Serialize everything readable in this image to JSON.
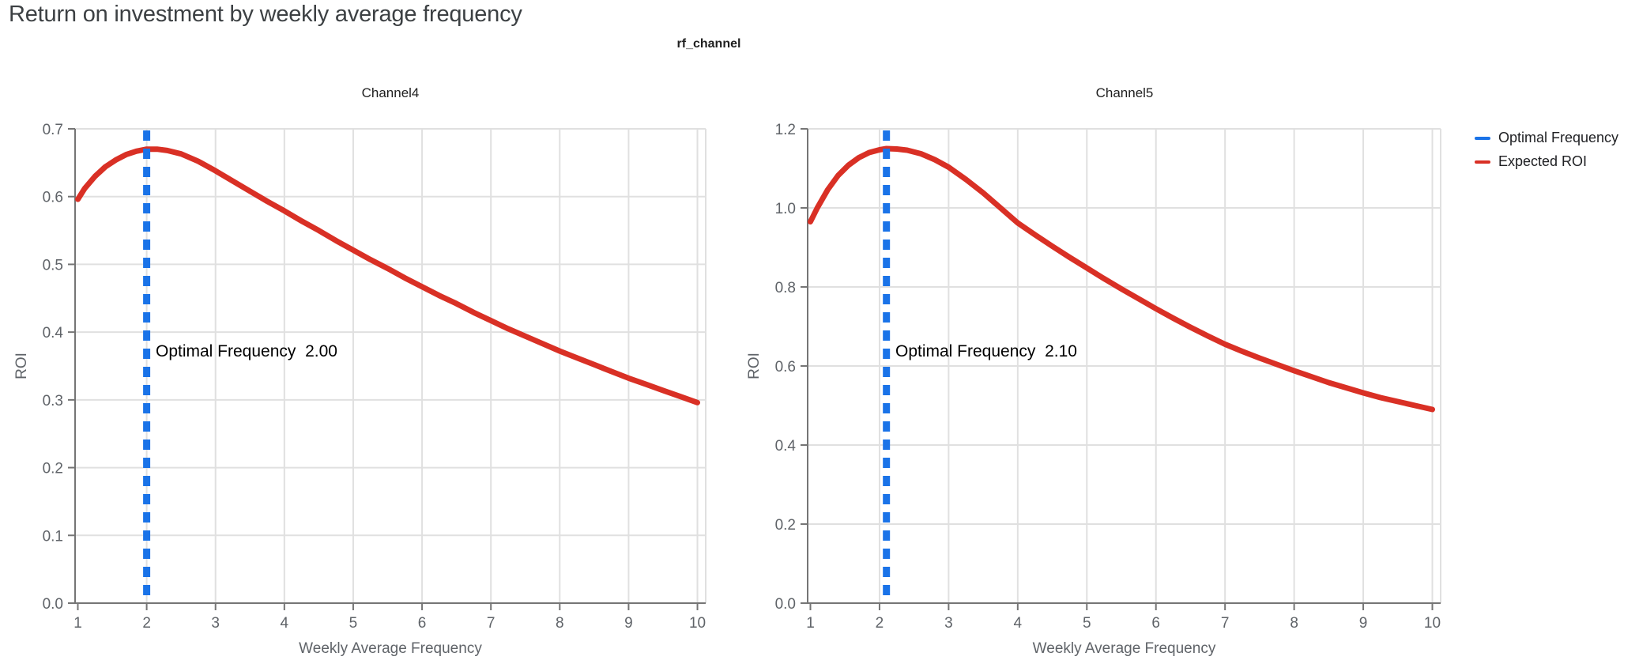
{
  "page": {
    "title": "Return on investment by weekly average frequency"
  },
  "facet": {
    "title": "rf_channel"
  },
  "legend": {
    "items": [
      {
        "label": "Optimal Frequency",
        "color": "#1a73e8"
      },
      {
        "label": "Expected ROI",
        "color": "#d93025"
      }
    ]
  },
  "colors": {
    "optimal_line": "#1a73e8",
    "roi_line": "#d93025",
    "grid": "#e0e0e0",
    "axis": "#757575",
    "tick_text": "#5f6368",
    "title_text": "#3c4043"
  },
  "chart_data": [
    {
      "type": "line",
      "title": "Channel4",
      "xlabel": "Weekly Average Frequency",
      "ylabel": "ROI",
      "xlim": [
        0.96,
        10.12
      ],
      "ylim": [
        0,
        0.7
      ],
      "grid": true,
      "x_tick_values": [
        1,
        2,
        3,
        4,
        5,
        6,
        7,
        8,
        9,
        10
      ],
      "x_tick_labels": [
        "1",
        "2",
        "3",
        "4",
        "5",
        "6",
        "7",
        "8",
        "9",
        "10"
      ],
      "y_tick_values": [
        0,
        0.1,
        0.2,
        0.3,
        0.4,
        0.5,
        0.6,
        0.7
      ],
      "y_tick_labels": [
        "0.0",
        "0.1",
        "0.2",
        "0.3",
        "0.4",
        "0.5",
        "0.6",
        "0.7"
      ],
      "optimal_frequency": 2.0,
      "annotation": "Optimal Frequency  2.00",
      "series": [
        {
          "name": "Expected ROI",
          "x": [
            1,
            1.1,
            1.25,
            1.4,
            1.55,
            1.7,
            1.85,
            2,
            2.15,
            2.3,
            2.5,
            2.75,
            3,
            3.25,
            3.5,
            3.75,
            4,
            4.25,
            4.5,
            4.75,
            5,
            5.25,
            5.5,
            5.75,
            6,
            6.25,
            6.5,
            6.75,
            7,
            7.25,
            7.5,
            7.75,
            8,
            8.25,
            8.5,
            8.75,
            9,
            9.25,
            9.5,
            9.75,
            10
          ],
          "y": [
            0.596,
            0.612,
            0.63,
            0.644,
            0.654,
            0.662,
            0.667,
            0.67,
            0.67,
            0.668,
            0.663,
            0.652,
            0.638,
            0.623,
            0.608,
            0.593,
            0.579,
            0.564,
            0.55,
            0.535,
            0.521,
            0.507,
            0.494,
            0.48,
            0.467,
            0.454,
            0.442,
            0.429,
            0.417,
            0.405,
            0.394,
            0.383,
            0.372,
            0.362,
            0.352,
            0.342,
            0.332,
            0.323,
            0.314,
            0.305,
            0.296
          ]
        }
      ]
    },
    {
      "type": "line",
      "title": "Channel5",
      "xlabel": "Weekly Average Frequency",
      "ylabel": "ROI",
      "xlim": [
        0.96,
        10.12
      ],
      "ylim": [
        0,
        1.2
      ],
      "grid": true,
      "x_tick_values": [
        1,
        2,
        3,
        4,
        5,
        6,
        7,
        8,
        9,
        10
      ],
      "x_tick_labels": [
        "1",
        "2",
        "3",
        "4",
        "5",
        "6",
        "7",
        "8",
        "9",
        "10"
      ],
      "y_tick_values": [
        0,
        0.2,
        0.4,
        0.6,
        0.8,
        1.0,
        1.2
      ],
      "y_tick_labels": [
        "0.0",
        "0.2",
        "0.4",
        "0.6",
        "0.8",
        "1.0",
        "1.2"
      ],
      "optimal_frequency": 2.1,
      "annotation": "Optimal Frequency  2.10",
      "series": [
        {
          "name": "Expected ROI",
          "x": [
            1,
            1.1,
            1.25,
            1.4,
            1.55,
            1.7,
            1.85,
            2,
            2.1,
            2.25,
            2.4,
            2.6,
            2.8,
            3,
            3.25,
            3.5,
            3.75,
            4,
            4.25,
            4.5,
            4.75,
            5,
            5.25,
            5.5,
            5.75,
            6,
            6.25,
            6.5,
            6.75,
            7,
            7.25,
            7.5,
            7.75,
            8,
            8.25,
            8.5,
            8.75,
            9,
            9.25,
            9.5,
            9.75,
            10
          ],
          "y": [
            0.965,
            1.0,
            1.046,
            1.082,
            1.108,
            1.127,
            1.14,
            1.147,
            1.15,
            1.149,
            1.146,
            1.137,
            1.122,
            1.103,
            1.072,
            1.038,
            1.0,
            0.962,
            0.932,
            0.903,
            0.875,
            0.848,
            0.821,
            0.795,
            0.77,
            0.745,
            0.721,
            0.698,
            0.676,
            0.655,
            0.637,
            0.62,
            0.604,
            0.588,
            0.573,
            0.558,
            0.545,
            0.532,
            0.52,
            0.51,
            0.5,
            0.49
          ]
        }
      ]
    }
  ]
}
